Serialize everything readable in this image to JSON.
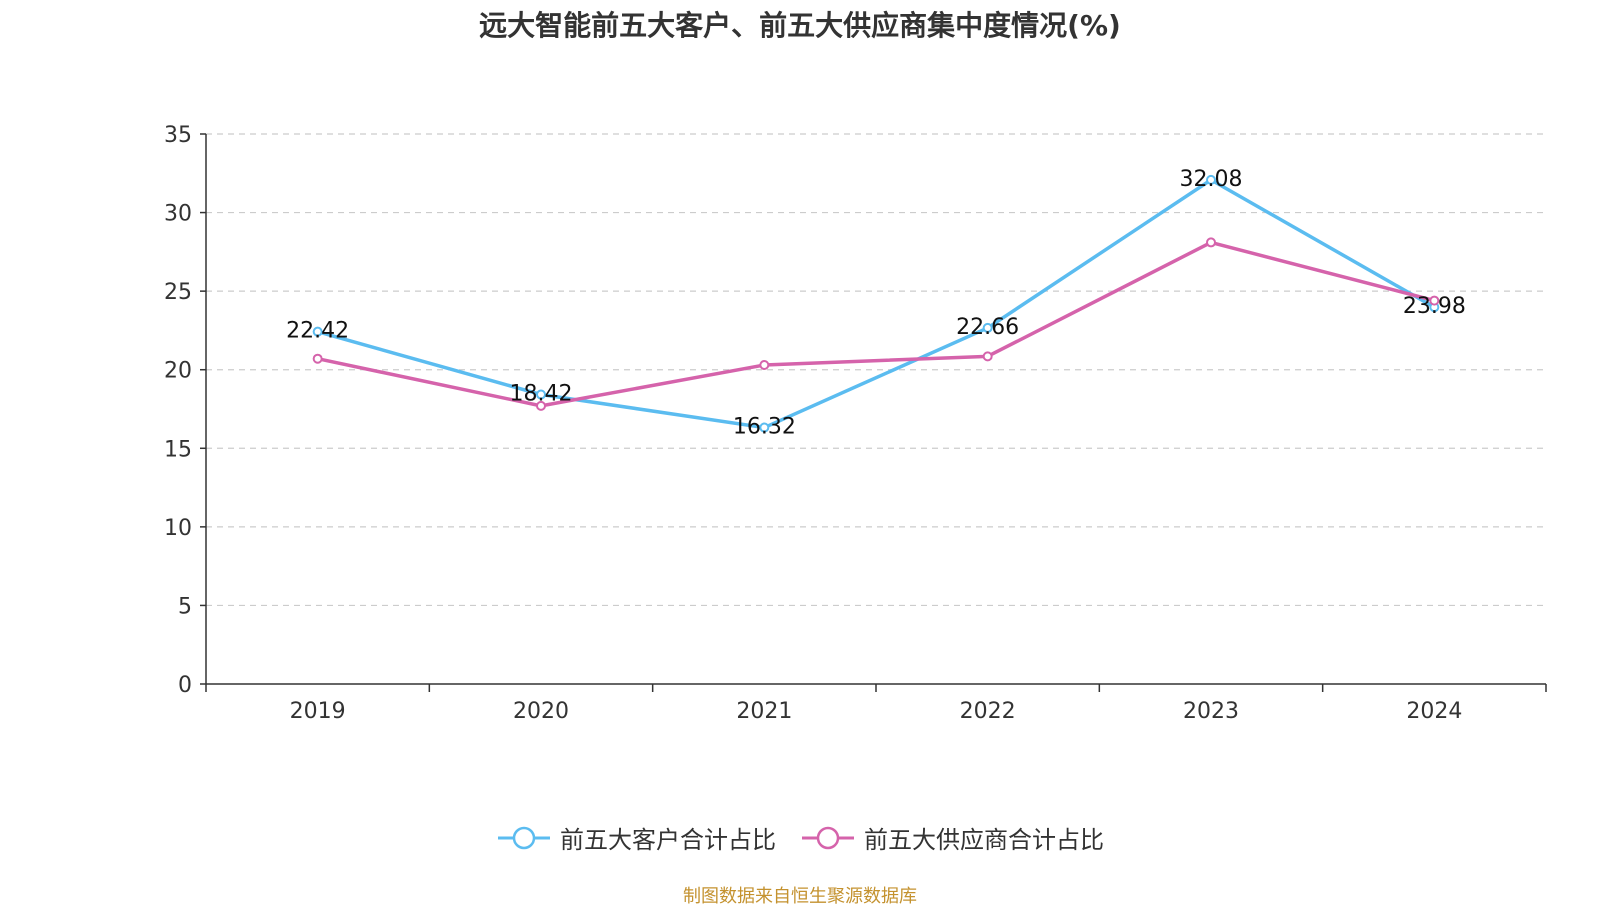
{
  "chart_data": {
    "type": "line",
    "title": "远大智能前五大客户、前五大供应商集中度情况(%)",
    "x": [
      "2019",
      "2020",
      "2021",
      "2022",
      "2023",
      "2024"
    ],
    "ylim": [
      0,
      35
    ],
    "yticks": [
      0,
      5,
      10,
      15,
      20,
      25,
      30,
      35
    ],
    "grid": true,
    "legend_position": "bottom",
    "series": [
      {
        "name": "前五大客户合计占比",
        "color": "#5bbcf0",
        "values": [
          22.42,
          18.42,
          16.32,
          22.66,
          32.08,
          23.98
        ],
        "data_labels": [
          "22.42",
          "18.42",
          "16.32",
          "22.66",
          "32.08",
          "23.98"
        ]
      },
      {
        "name": "前五大供应商合计占比",
        "color": "#d563ab",
        "values": [
          20.7,
          17.7,
          20.3,
          20.85,
          28.1,
          24.4
        ]
      }
    ]
  },
  "source_note": "制图数据来自恒生聚源数据库"
}
